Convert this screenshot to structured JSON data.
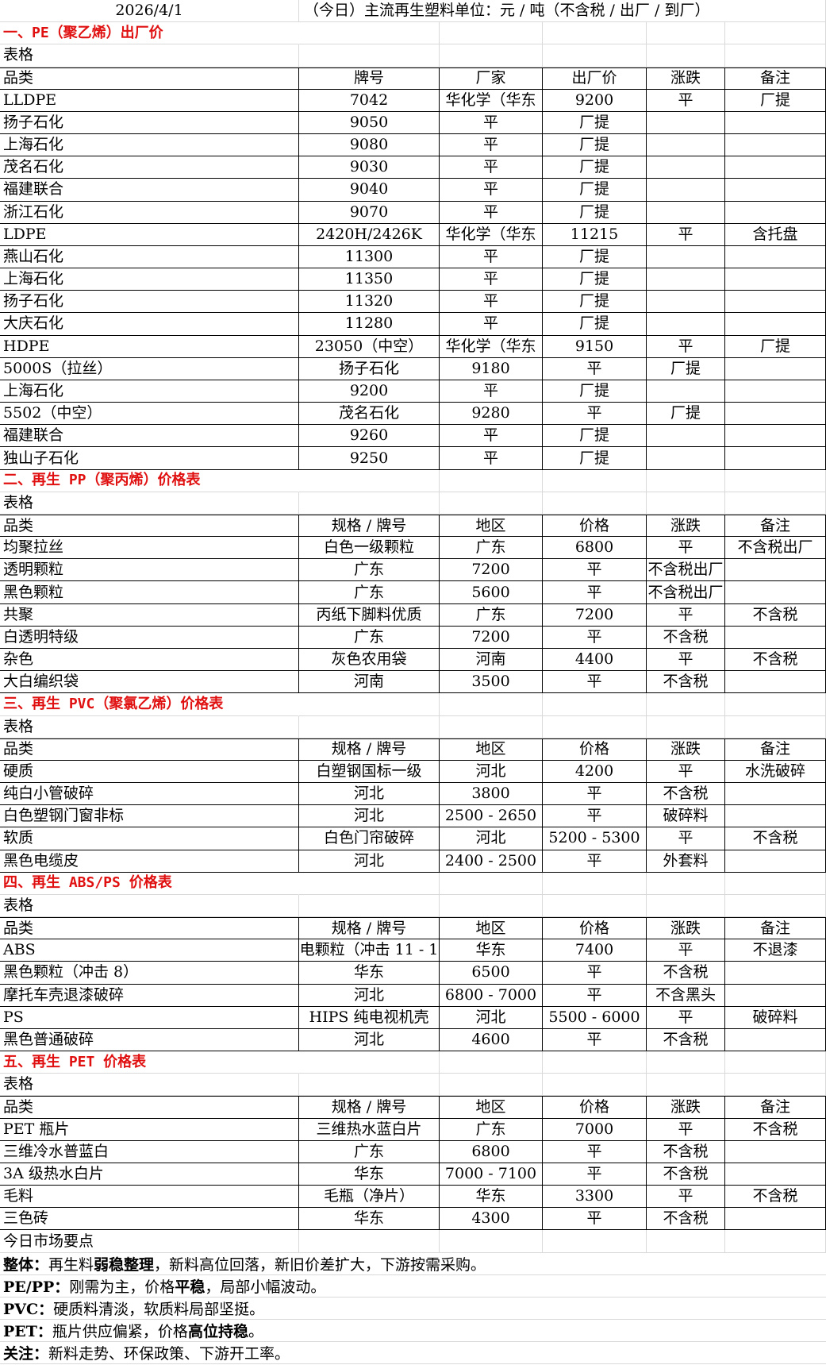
{
  "header": {
    "date": "2026/4/1",
    "title": "（今日）主流再生塑料单位：元 / 吨（不含税 / 出厂 / 到厂）"
  },
  "colors": {
    "section_title": "#e01010",
    "table_border": "#000000",
    "grid": "#d9d9d9"
  },
  "sections": [
    {
      "title": "一、PE（聚乙烯）出厂价",
      "label": "表格",
      "rows": [
        [
          "品类",
          "牌号",
          "厂家",
          "出厂价",
          "涨跌",
          "备注"
        ],
        [
          "LLDPE",
          "7042",
          "华化学（华东",
          "9200",
          "平",
          "厂提"
        ],
        [
          "扬子石化",
          "9050",
          "平",
          "厂提",
          "",
          ""
        ],
        [
          "上海石化",
          "9080",
          "平",
          "厂提",
          "",
          ""
        ],
        [
          "茂名石化",
          "9030",
          "平",
          "厂提",
          "",
          ""
        ],
        [
          "福建联合",
          "9040",
          "平",
          "厂提",
          "",
          ""
        ],
        [
          "浙江石化",
          "9070",
          "平",
          "厂提",
          "",
          ""
        ],
        [
          "LDPE",
          "2420H/2426K",
          "华化学（华东",
          "11215",
          "平",
          "含托盘"
        ],
        [
          "燕山石化",
          "11300",
          "平",
          "厂提",
          "",
          ""
        ],
        [
          "上海石化",
          "11350",
          "平",
          "厂提",
          "",
          ""
        ],
        [
          "扬子石化",
          "11320",
          "平",
          "厂提",
          "",
          ""
        ],
        [
          "大庆石化",
          "11280",
          "平",
          "厂提",
          "",
          ""
        ],
        [
          "HDPE",
          "23050（中空）",
          "华化学（华东",
          "9150",
          "平",
          "厂提"
        ],
        [
          "5000S（拉丝）",
          "扬子石化",
          "9180",
          "平",
          "厂提",
          ""
        ],
        [
          "上海石化",
          "9200",
          "平",
          "厂提",
          "",
          ""
        ],
        [
          "5502（中空）",
          "茂名石化",
          "9280",
          "平",
          "厂提",
          ""
        ],
        [
          "福建联合",
          "9260",
          "平",
          "厂提",
          "",
          ""
        ],
        [
          "独山子石化",
          "9250",
          "平",
          "厂提",
          "",
          ""
        ]
      ]
    },
    {
      "title": "二、再生 PP（聚丙烯）价格表",
      "label": "表格",
      "rows": [
        [
          "品类",
          "规格 / 牌号",
          "地区",
          "价格",
          "涨跌",
          "备注"
        ],
        [
          "均聚拉丝",
          "白色一级颗粒",
          "广东",
          "6800",
          "平",
          "不含税出厂"
        ],
        [
          "透明颗粒",
          "广东",
          "7200",
          "平",
          "不含税出厂",
          ""
        ],
        [
          "黑色颗粒",
          "广东",
          "5600",
          "平",
          "不含税出厂",
          ""
        ],
        [
          "共聚",
          "丙纸下脚料优质",
          "广东",
          "7200",
          "平",
          "不含税"
        ],
        [
          "白透明特级",
          "广东",
          "7200",
          "平",
          "不含税",
          ""
        ],
        [
          "杂色",
          "灰色农用袋",
          "河南",
          "4400",
          "平",
          "不含税"
        ],
        [
          "大白编织袋",
          "河南",
          "3500",
          "平",
          "不含税",
          ""
        ]
      ]
    },
    {
      "title": "三、再生 PVC（聚氯乙烯）价格表",
      "label": "表格",
      "rows": [
        [
          "品类",
          "规格 / 牌号",
          "地区",
          "价格",
          "涨跌",
          "备注"
        ],
        [
          "硬质",
          "白塑钢国标一级",
          "河北",
          "4200",
          "平",
          "水洗破碎"
        ],
        [
          "纯白小管破碎",
          "河北",
          "3800",
          "平",
          "不含税",
          ""
        ],
        [
          "白色塑钢门窗非标",
          "河北",
          "2500 - 2650",
          "平",
          "破碎料",
          ""
        ],
        [
          "软质",
          "白色门帘破碎",
          "河北",
          "5200 - 5300",
          "平",
          "不含税"
        ],
        [
          "黑色电缆皮",
          "河北",
          "2400 - 2500",
          "平",
          "外套料",
          ""
        ]
      ]
    },
    {
      "title": "四、再生 ABS/PS 价格表",
      "label": "表格",
      "rows": [
        [
          "品类",
          "规格 / 牌号",
          "地区",
          "价格",
          "涨跌",
          "备注"
        ],
        [
          "ABS",
          "电颗粒（冲击 11 - 1",
          "华东",
          "7400",
          "平",
          "不退漆"
        ],
        [
          "黑色颗粒（冲击 8）",
          "华东",
          "6500",
          "平",
          "不含税",
          ""
        ],
        [
          "摩托车壳退漆破碎",
          "河北",
          "6800 - 7000",
          "平",
          "不含黑头",
          ""
        ],
        [
          "PS",
          "HIPS 纯电视机壳",
          "河北",
          "5500 - 6000",
          "平",
          "破碎料"
        ],
        [
          "黑色普通破碎",
          "河北",
          "4600",
          "平",
          "不含税",
          ""
        ]
      ]
    },
    {
      "title": "五、再生 PET 价格表",
      "label": "表格",
      "rows": [
        [
          "品类",
          "规格 / 牌号",
          "地区",
          "价格",
          "涨跌",
          "备注"
        ],
        [
          "PET 瓶片",
          "三维热水蓝白片",
          "广东",
          "7000",
          "平",
          "不含税"
        ],
        [
          "三维冷水普蓝白",
          "广东",
          "6800",
          "平",
          "不含税",
          ""
        ],
        [
          "3A 级热水白片",
          "华东",
          "7000 - 7100",
          "平",
          "不含税",
          ""
        ],
        [
          "毛料",
          "毛瓶（净片）",
          "华东",
          "3300",
          "平",
          "不含税"
        ],
        [
          "三色砖",
          "华东",
          "4300",
          "平",
          "不含税",
          ""
        ]
      ]
    }
  ],
  "notes": {
    "title": "今日市场要点",
    "lines": [
      [
        {
          "text": "整体：",
          "bold": true
        },
        {
          "text": "再生料",
          "bold": false
        },
        {
          "text": "弱稳整理",
          "bold": true
        },
        {
          "text": "，新料高位回落，新旧价差扩大，下游按需采购。",
          "bold": false
        }
      ],
      [
        {
          "text": "PE/PP：",
          "bold": true
        },
        {
          "text": "刚需为主，价格",
          "bold": false
        },
        {
          "text": "平稳",
          "bold": true
        },
        {
          "text": "，局部小幅波动。",
          "bold": false
        }
      ],
      [
        {
          "text": "PVC：",
          "bold": true
        },
        {
          "text": "硬质料清淡，软质料局部坚挺。",
          "bold": false
        }
      ],
      [
        {
          "text": "PET：",
          "bold": true
        },
        {
          "text": "瓶片供应偏紧，价格",
          "bold": false
        },
        {
          "text": "高位持稳",
          "bold": true
        },
        {
          "text": "。",
          "bold": false
        }
      ],
      [
        {
          "text": "关注：",
          "bold": true
        },
        {
          "text": "新料走势、环保政策、下游开工率。",
          "bold": false
        }
      ]
    ]
  }
}
